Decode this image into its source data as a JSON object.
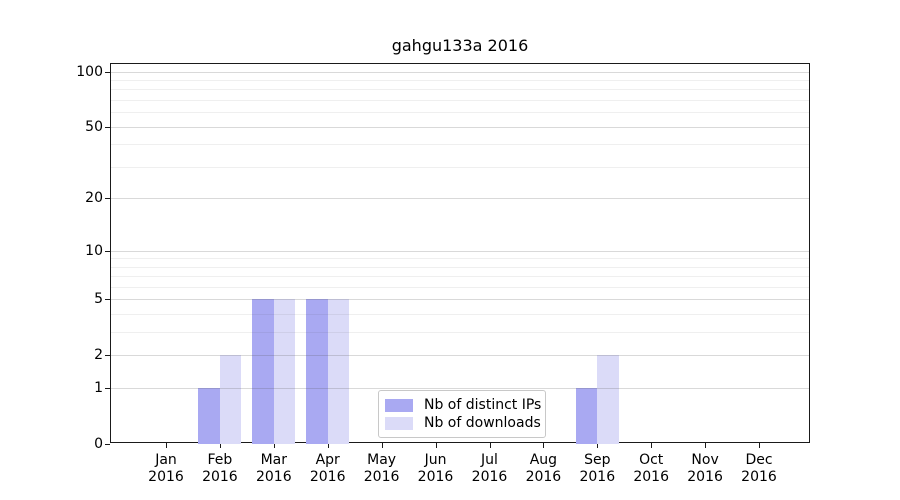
{
  "title": "gahgu133a 2016",
  "chart_data": {
    "type": "bar",
    "title": "gahgu133a 2016",
    "year": "2016",
    "categories": [
      "Jan",
      "Feb",
      "Mar",
      "Apr",
      "May",
      "Jun",
      "Jul",
      "Aug",
      "Sep",
      "Oct",
      "Nov",
      "Dec"
    ],
    "series": [
      {
        "name": "Nb of distinct IPs",
        "color": "#a9a9f2",
        "values": [
          0,
          1,
          5,
          5,
          0,
          0,
          0,
          0,
          1,
          0,
          0,
          0
        ]
      },
      {
        "name": "Nb of downloads",
        "color": "#dbdbf8",
        "values": [
          0,
          2,
          5,
          5,
          0,
          0,
          0,
          0,
          2,
          0,
          0,
          0
        ]
      }
    ],
    "xlabel": "",
    "ylabel": "",
    "yscale": "log1p",
    "ylim": [
      0,
      110
    ],
    "yticks": [
      0,
      1,
      2,
      5,
      10,
      20,
      50,
      100
    ],
    "minor_gridlines": [
      3,
      4,
      6,
      7,
      8,
      9,
      30,
      40,
      60,
      70,
      80,
      90
    ],
    "grid": true,
    "legend_position": "lower-center"
  },
  "colors": {
    "spine": "#1a1a1a",
    "major_grid": "#d7d7d7",
    "minor_grid": "#efefef",
    "background": "#ffffff"
  }
}
